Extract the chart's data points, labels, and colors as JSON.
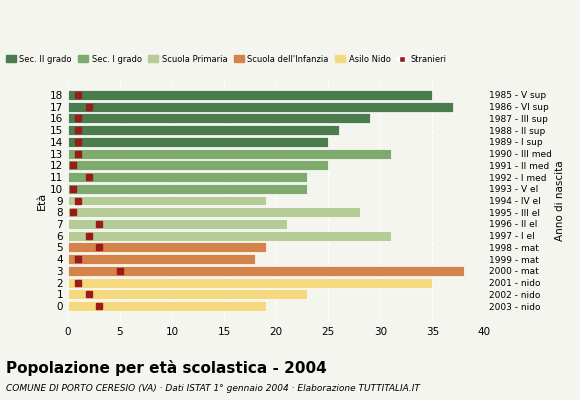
{
  "ages": [
    18,
    17,
    16,
    15,
    14,
    13,
    12,
    11,
    10,
    9,
    8,
    7,
    6,
    5,
    4,
    3,
    2,
    1,
    0
  ],
  "values": [
    35,
    37,
    29,
    26,
    25,
    31,
    25,
    23,
    23,
    19,
    28,
    21,
    31,
    19,
    18,
    38,
    35,
    23,
    19
  ],
  "stranieri": [
    1,
    2,
    1,
    1,
    1,
    1,
    0.5,
    2,
    0.5,
    1,
    0.5,
    3,
    2,
    3,
    1,
    5,
    1,
    2,
    3
  ],
  "categories": {
    "sec2": [
      18,
      17,
      16,
      15,
      14
    ],
    "sec1": [
      13,
      12,
      11,
      10
    ],
    "primaria": [
      9,
      8,
      7,
      6
    ],
    "infanzia": [
      5,
      4,
      3
    ],
    "nido": [
      2,
      1,
      0
    ]
  },
  "colors": {
    "sec2": "#4a7c4e",
    "sec1": "#7faa6e",
    "primaria": "#b5cc96",
    "infanzia": "#d4844a",
    "nido": "#f5d97e"
  },
  "anno_di_nascita": [
    "1985 - V sup",
    "1986 - VI sup",
    "1987 - III sup",
    "1988 - II sup",
    "1989 - I sup",
    "1990 - III med",
    "1991 - II med",
    "1992 - I med",
    "1993 - V el",
    "1994 - IV el",
    "1995 - III el",
    "1996 - II el",
    "1997 - I el",
    "1998 - mat",
    "1999 - mat",
    "2000 - mat",
    "2001 - nido",
    "2002 - nido",
    "2003 - nido"
  ],
  "title": "Popolazione per età scolastica - 2004",
  "subtitle": "COMUNE DI PORTO CERESIO (VA) · Dati ISTAT 1° gennaio 2004 · Elaborazione TUTTITALIA.IT",
  "xlabel": "",
  "xlim": [
    0,
    40
  ],
  "xticks": [
    0,
    5,
    10,
    15,
    20,
    25,
    30,
    35,
    40
  ],
  "legend_labels": [
    "Sec. II grado",
    "Sec. I grado",
    "Scuola Primaria",
    "Scuola dell'Infanzia",
    "Asilo Nido",
    "Stranieri"
  ],
  "stranieri_color": "#9b1a1a",
  "bg_color": "#f5f5f0",
  "bar_height": 0.85
}
